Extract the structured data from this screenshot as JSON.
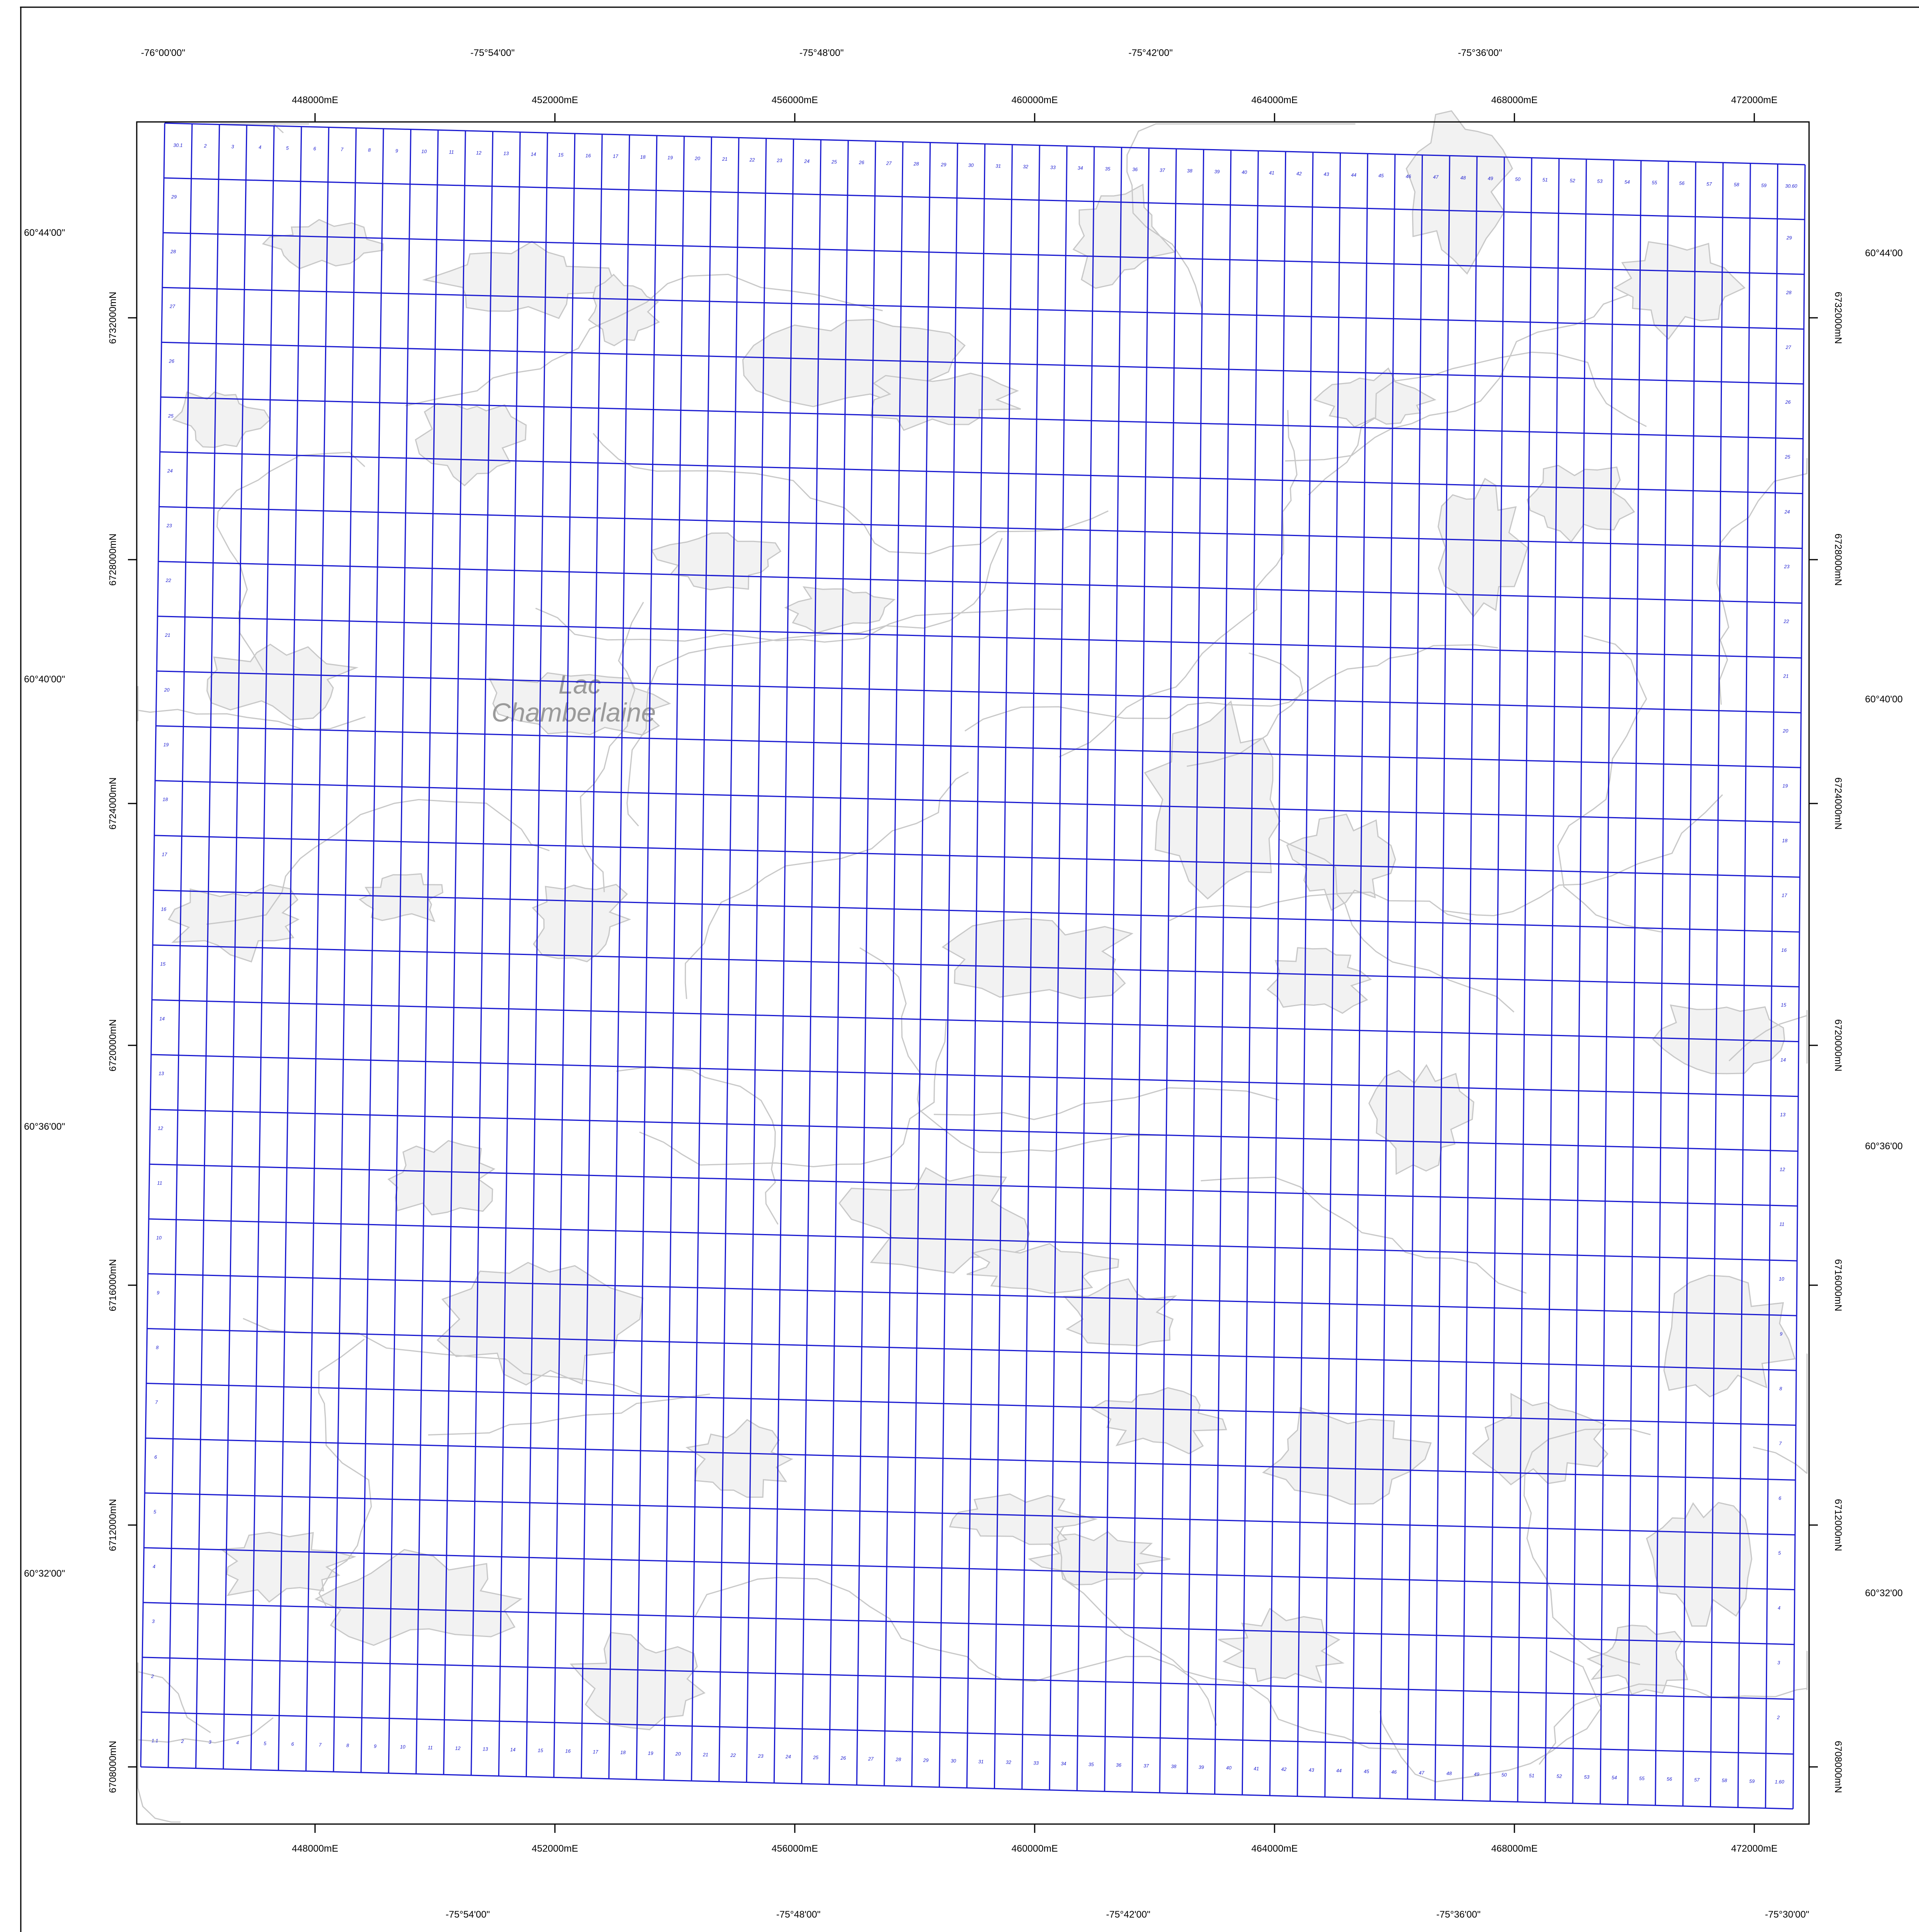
{
  "map": {
    "lake_label_line1": "Lac",
    "lake_label_line2": "Chamberlaine",
    "colors": {
      "grid": "#1a1ad0",
      "grid_text": "#1a1ad0",
      "contour": "#c8c8c8",
      "lake_fill": "#f2f2f2",
      "frame": "#000000",
      "text": "#000000"
    },
    "grid": {
      "columns": 60,
      "rows": 30,
      "top_row_labels": [
        "30.1",
        "2",
        "3",
        "4",
        "5",
        "6",
        "7",
        "8",
        "9",
        "10",
        "11",
        "12",
        "13",
        "14",
        "15",
        "16",
        "17",
        "18",
        "19",
        "20",
        "21",
        "22",
        "23",
        "24",
        "25",
        "26",
        "27",
        "28",
        "29",
        "30",
        "31",
        "32",
        "33",
        "34",
        "35",
        "36",
        "37",
        "38",
        "39",
        "40",
        "41",
        "42",
        "43",
        "44",
        "45",
        "46",
        "47",
        "48",
        "49",
        "50",
        "51",
        "52",
        "53",
        "54",
        "55",
        "56",
        "57",
        "58",
        "59",
        "30.60"
      ],
      "bottom_row_labels": [
        "1.1",
        "2",
        "3",
        "4",
        "5",
        "6",
        "7",
        "8",
        "9",
        "10",
        "11",
        "12",
        "13",
        "14",
        "15",
        "16",
        "17",
        "18",
        "19",
        "20",
        "21",
        "22",
        "23",
        "24",
        "25",
        "26",
        "27",
        "28",
        "29",
        "30",
        "31",
        "32",
        "33",
        "34",
        "35",
        "36",
        "37",
        "38",
        "39",
        "40",
        "41",
        "42",
        "43",
        "44",
        "45",
        "46",
        "47",
        "48",
        "49",
        "50",
        "51",
        "52",
        "53",
        "54",
        "55",
        "56",
        "57",
        "58",
        "59",
        "1.60"
      ],
      "left_column_labels": [
        "29",
        "28",
        "27",
        "26",
        "25",
        "24",
        "23",
        "22",
        "21",
        "20",
        "19",
        "18",
        "17",
        "16",
        "15",
        "14",
        "13",
        "12",
        "11",
        "10",
        "9",
        "8",
        "7",
        "6",
        "5",
        "4",
        "3",
        "2"
      ],
      "right_column_labels": [
        "29",
        "28",
        "27",
        "26",
        "25",
        "24",
        "23",
        "22",
        "21",
        "20",
        "19",
        "18",
        "17",
        "16",
        "15",
        "14",
        "13",
        "12",
        "11",
        "10",
        "9",
        "8",
        "7",
        "6",
        "5",
        "4",
        "3",
        "2"
      ]
    },
    "utm_top": [
      "448000mE",
      "452000mE",
      "456000mE",
      "460000mE",
      "464000mE",
      "468000mE",
      "472000mE"
    ],
    "utm_bottom": [
      "448000mE",
      "452000mE",
      "456000mE",
      "460000mE",
      "464000mE",
      "468000mE",
      "472000mE"
    ],
    "utm_left": [
      "6732000mN",
      "6728000mN",
      "6724000mN",
      "6720000mN",
      "6716000mN",
      "6712000mN",
      "6708000mN"
    ],
    "utm_right": [
      "6732000mN",
      "6728000mN",
      "6724000mN",
      "6720000mN",
      "6716000mN",
      "6712000mN",
      "6708000mN"
    ],
    "geo_top": [
      "-76°00'00\"",
      "-75°54'00\"",
      "-75°48'00\"",
      "-75°42'00\"",
      "-75°36'00\""
    ],
    "geo_bottom": [
      "-75°54'00\"",
      "-75°48'00\"",
      "-75°42'00\"",
      "-75°36'00\"",
      "-75°30'00\""
    ],
    "geo_left": [
      "60°44'00\"",
      "60°40'00\"",
      "60°36'00\"",
      "60°32'00\""
    ],
    "geo_right": [
      "60°44'00",
      "60°40'00",
      "60°36'00",
      "60°32'00"
    ]
  }
}
